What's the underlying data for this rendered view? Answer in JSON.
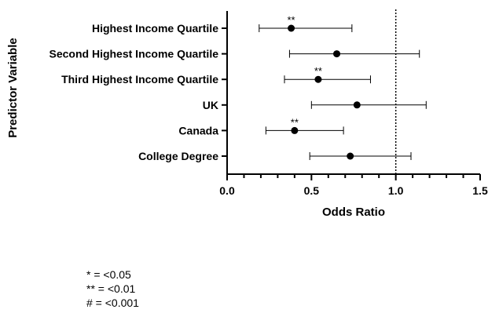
{
  "chart_data": {
    "type": "forest",
    "xlabel": "Odds Ratio",
    "ylabel": "Predictor Variable",
    "xlim": [
      0.0,
      1.5
    ],
    "x_ticks": [
      "0.0",
      "0.5",
      "1.0",
      "1.5"
    ],
    "reference_line": 1.0,
    "rows": [
      {
        "label": "Highest Income Quartile",
        "or": 0.38,
        "lower": 0.19,
        "upper": 0.74,
        "sig": "**"
      },
      {
        "label": "Second Highest Income Quartile",
        "or": 0.65,
        "lower": 0.37,
        "upper": 1.14,
        "sig": ""
      },
      {
        "label": "Third Highest Income Quartile",
        "or": 0.54,
        "lower": 0.34,
        "upper": 0.85,
        "sig": "**"
      },
      {
        "label": "UK",
        "or": 0.77,
        "lower": 0.5,
        "upper": 1.18,
        "sig": ""
      },
      {
        "label": "Canada",
        "or": 0.4,
        "lower": 0.23,
        "upper": 0.69,
        "sig": "**"
      },
      {
        "label": "College Degree",
        "or": 0.73,
        "lower": 0.49,
        "upper": 1.09,
        "sig": ""
      }
    ]
  },
  "legend": {
    "line1": "* = <0.05",
    "line2": "** = <0.01",
    "line3": "# = <0.001"
  }
}
